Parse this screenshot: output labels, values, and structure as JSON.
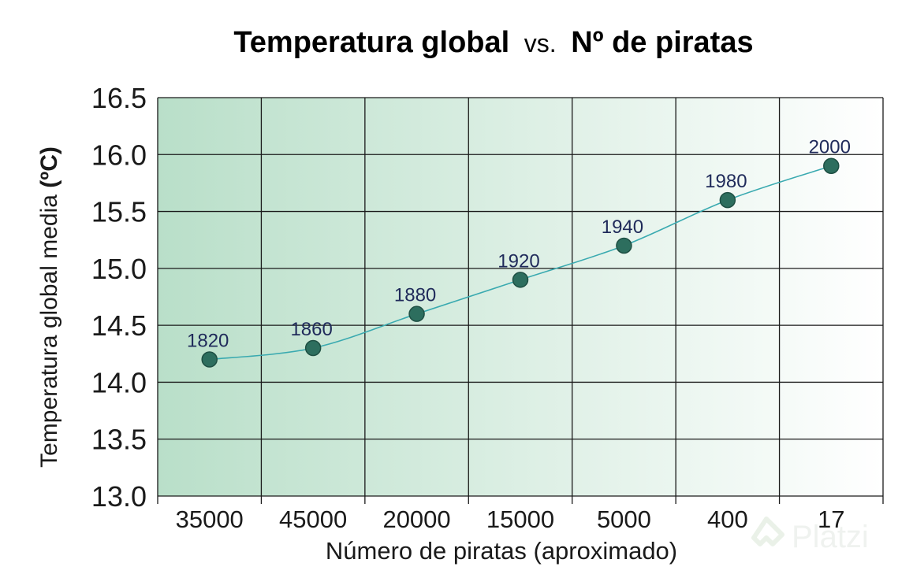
{
  "chart_data": {
    "type": "line",
    "title_part1": "Temperatura global",
    "title_mid": "vs.",
    "title_part2": "Nº de piratas",
    "xlabel": "Número de piratas (aproximado)",
    "ylabel_part1": "Temperatura global media ",
    "ylabel_part2": "(ºC)",
    "categories": [
      "35000",
      "45000",
      "20000",
      "15000",
      "5000",
      "400",
      "17"
    ],
    "values": [
      14.2,
      14.3,
      14.6,
      14.9,
      15.2,
      15.6,
      15.9
    ],
    "point_labels": [
      "1820",
      "1860",
      "1880",
      "1920",
      "1940",
      "1980",
      "2000"
    ],
    "yticks": [
      "13.0",
      "13.5",
      "14.0",
      "14.5",
      "15.0",
      "15.5",
      "16.0",
      "16.5"
    ],
    "ylim": [
      13.0,
      16.5
    ],
    "grid": true,
    "colors": {
      "line": "#3aaab0",
      "marker": "#2d6e5e",
      "marker_stroke": "#1e4f43",
      "point_label": "#1f2a5a",
      "grid": "#1a1a1a",
      "gradient_left": "#b9dfc9",
      "gradient_right": "#ffffff"
    }
  },
  "watermark": {
    "text": "Platzi"
  }
}
